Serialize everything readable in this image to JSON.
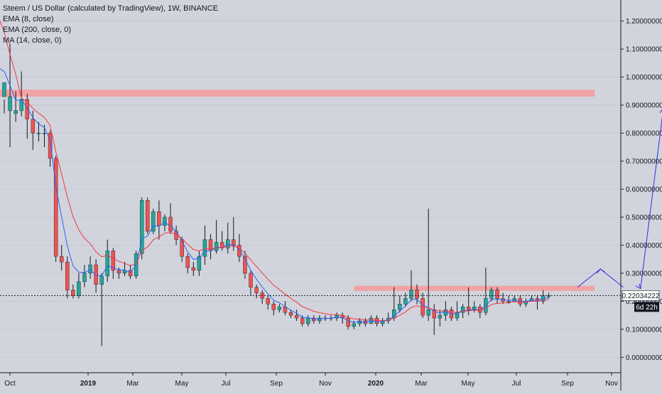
{
  "legend": {
    "title": "Steem / US Dollar (calculated by TradingView), 1W, BINANCE",
    "indicator_1": "EMA (8, close)",
    "indicator_2": "EMA (200, close, 0)",
    "indicator_3": "MA (14, close, 0)"
  },
  "chart_data": {
    "type": "candlestick",
    "title": "Steem / US Dollar (calculated by TradingView), 1W, BINANCE",
    "x_tick_labels": [
      "Oct",
      "2019",
      "Mar",
      "May",
      "Jul",
      "Sep",
      "Nov",
      "2020",
      "Mar",
      "May",
      "Jul",
      "Sep",
      "Nov"
    ],
    "y_tick_labels": [
      "1.20000000",
      "1.10000000",
      "1.00000000",
      "0.90000000",
      "0.80000000",
      "0.70000000",
      "0.60000000",
      "0.50000000",
      "0.40000000",
      "0.30000000",
      "0.20000000",
      "0.10000000",
      "0.00000000"
    ],
    "ylim": [
      -0.055,
      1.275
    ],
    "y_ticks": [
      1.2,
      1.1,
      1.0,
      0.9,
      0.8,
      0.7,
      0.6,
      0.5,
      0.4,
      0.3,
      0.2,
      0.1,
      0.0
    ],
    "last_price_label": "0.22034222",
    "countdown_label": "6d 22h",
    "last_price": 0.2203,
    "colors": {
      "up": "#26a69a",
      "down": "#ef5350",
      "ema_fast": "#2962ff",
      "ema_slow": "#f23645",
      "zone": "#f2a0a0",
      "arrow": "#3030e0"
    },
    "resistance_zones": [
      {
        "y_low": 0.93,
        "y_high": 0.955,
        "from_index": 0,
        "to_index": 103
      },
      {
        "y_low": 0.237,
        "y_high": 0.255,
        "from_index": 61,
        "to_index": 103
      }
    ],
    "projection_arrow": [
      [
        100,
        0.25
      ],
      [
        104,
        0.315
      ],
      [
        108,
        0.25
      ],
      [
        111,
        0.245
      ],
      [
        115,
        0.89
      ]
    ],
    "candles": [
      [
        0.93,
        0.98,
        0.92,
        0.87
      ],
      [
        0.88,
        0.93,
        1.12,
        0.75
      ],
      [
        0.87,
        0.88,
        0.95,
        0.84
      ],
      [
        0.88,
        0.92,
        1.02,
        0.86
      ],
      [
        0.92,
        0.85,
        0.94,
        0.78
      ],
      [
        0.85,
        0.8,
        0.88,
        0.74
      ],
      [
        0.8,
        0.8,
        0.84,
        0.77
      ],
      [
        0.8,
        0.8,
        0.83,
        0.75
      ],
      [
        0.8,
        0.71,
        0.81,
        0.68
      ],
      [
        0.71,
        0.36,
        0.72,
        0.34
      ],
      [
        0.36,
        0.34,
        0.4,
        0.31
      ],
      [
        0.34,
        0.24,
        0.36,
        0.21
      ],
      [
        0.24,
        0.22,
        0.26,
        0.21
      ],
      [
        0.22,
        0.27,
        0.3,
        0.21
      ],
      [
        0.27,
        0.3,
        0.33,
        0.25
      ],
      [
        0.3,
        0.33,
        0.36,
        0.28
      ],
      [
        0.33,
        0.26,
        0.35,
        0.23
      ],
      [
        0.26,
        0.29,
        0.3,
        0.04
      ],
      [
        0.29,
        0.38,
        0.42,
        0.27
      ],
      [
        0.38,
        0.31,
        0.39,
        0.28
      ],
      [
        0.31,
        0.3,
        0.32,
        0.28
      ],
      [
        0.3,
        0.31,
        0.34,
        0.29
      ],
      [
        0.31,
        0.29,
        0.33,
        0.28
      ],
      [
        0.29,
        0.37,
        0.38,
        0.28
      ],
      [
        0.37,
        0.56,
        0.57,
        0.35
      ],
      [
        0.56,
        0.45,
        0.57,
        0.44
      ],
      [
        0.45,
        0.52,
        0.53,
        0.44
      ],
      [
        0.52,
        0.47,
        0.56,
        0.42
      ],
      [
        0.47,
        0.5,
        0.51,
        0.45
      ],
      [
        0.5,
        0.45,
        0.55,
        0.44
      ],
      [
        0.45,
        0.42,
        0.47,
        0.4
      ],
      [
        0.42,
        0.36,
        0.43,
        0.34
      ],
      [
        0.36,
        0.32,
        0.37,
        0.3
      ],
      [
        0.32,
        0.31,
        0.34,
        0.29
      ],
      [
        0.31,
        0.36,
        0.38,
        0.29
      ],
      [
        0.36,
        0.42,
        0.47,
        0.33
      ],
      [
        0.42,
        0.38,
        0.44,
        0.35
      ],
      [
        0.38,
        0.41,
        0.49,
        0.37
      ],
      [
        0.41,
        0.39,
        0.45,
        0.38
      ],
      [
        0.39,
        0.42,
        0.48,
        0.37
      ],
      [
        0.42,
        0.4,
        0.5,
        0.38
      ],
      [
        0.4,
        0.36,
        0.44,
        0.34
      ],
      [
        0.36,
        0.3,
        0.38,
        0.28
      ],
      [
        0.3,
        0.25,
        0.31,
        0.22
      ],
      [
        0.25,
        0.23,
        0.26,
        0.21
      ],
      [
        0.23,
        0.21,
        0.24,
        0.19
      ],
      [
        0.21,
        0.19,
        0.22,
        0.17
      ],
      [
        0.19,
        0.17,
        0.2,
        0.15
      ],
      [
        0.17,
        0.18,
        0.19,
        0.16
      ],
      [
        0.18,
        0.16,
        0.2,
        0.15
      ],
      [
        0.16,
        0.15,
        0.17,
        0.14
      ],
      [
        0.15,
        0.14,
        0.17,
        0.13
      ],
      [
        0.14,
        0.12,
        0.15,
        0.11
      ],
      [
        0.12,
        0.14,
        0.15,
        0.11
      ],
      [
        0.14,
        0.13,
        0.15,
        0.12
      ],
      [
        0.13,
        0.14,
        0.15,
        0.12
      ],
      [
        0.14,
        0.14,
        0.15,
        0.13
      ],
      [
        0.14,
        0.14,
        0.15,
        0.13
      ],
      [
        0.14,
        0.15,
        0.16,
        0.13
      ],
      [
        0.15,
        0.14,
        0.16,
        0.12
      ],
      [
        0.14,
        0.11,
        0.15,
        0.1
      ],
      [
        0.11,
        0.12,
        0.13,
        0.1
      ],
      [
        0.12,
        0.13,
        0.14,
        0.11
      ],
      [
        0.13,
        0.12,
        0.14,
        0.11
      ],
      [
        0.12,
        0.14,
        0.15,
        0.12
      ],
      [
        0.14,
        0.12,
        0.15,
        0.11
      ],
      [
        0.12,
        0.13,
        0.14,
        0.11
      ],
      [
        0.13,
        0.14,
        0.16,
        0.12
      ],
      [
        0.14,
        0.17,
        0.25,
        0.13
      ],
      [
        0.17,
        0.19,
        0.22,
        0.16
      ],
      [
        0.19,
        0.21,
        0.23,
        0.18
      ],
      [
        0.21,
        0.24,
        0.31,
        0.2
      ],
      [
        0.24,
        0.21,
        0.26,
        0.19
      ],
      [
        0.21,
        0.15,
        0.23,
        0.14
      ],
      [
        0.15,
        0.17,
        0.53,
        0.13
      ],
      [
        0.17,
        0.14,
        0.19,
        0.08
      ],
      [
        0.14,
        0.15,
        0.17,
        0.11
      ],
      [
        0.15,
        0.17,
        0.2,
        0.13
      ],
      [
        0.17,
        0.14,
        0.18,
        0.13
      ],
      [
        0.14,
        0.16,
        0.2,
        0.13
      ],
      [
        0.16,
        0.18,
        0.19,
        0.14
      ],
      [
        0.18,
        0.17,
        0.25,
        0.15
      ],
      [
        0.17,
        0.18,
        0.2,
        0.16
      ],
      [
        0.18,
        0.16,
        0.19,
        0.14
      ],
      [
        0.16,
        0.21,
        0.32,
        0.15
      ],
      [
        0.21,
        0.24,
        0.25,
        0.2
      ],
      [
        0.24,
        0.21,
        0.25,
        0.19
      ],
      [
        0.21,
        0.2,
        0.23,
        0.19
      ],
      [
        0.2,
        0.2,
        0.22,
        0.19
      ],
      [
        0.2,
        0.21,
        0.22,
        0.2
      ],
      [
        0.21,
        0.19,
        0.22,
        0.18
      ],
      [
        0.19,
        0.2,
        0.21,
        0.18
      ],
      [
        0.2,
        0.21,
        0.22,
        0.2
      ],
      [
        0.21,
        0.2,
        0.22,
        0.17
      ],
      [
        0.2,
        0.22,
        0.24,
        0.19
      ],
      [
        0.22,
        0.22,
        0.23,
        0.21
      ]
    ]
  }
}
